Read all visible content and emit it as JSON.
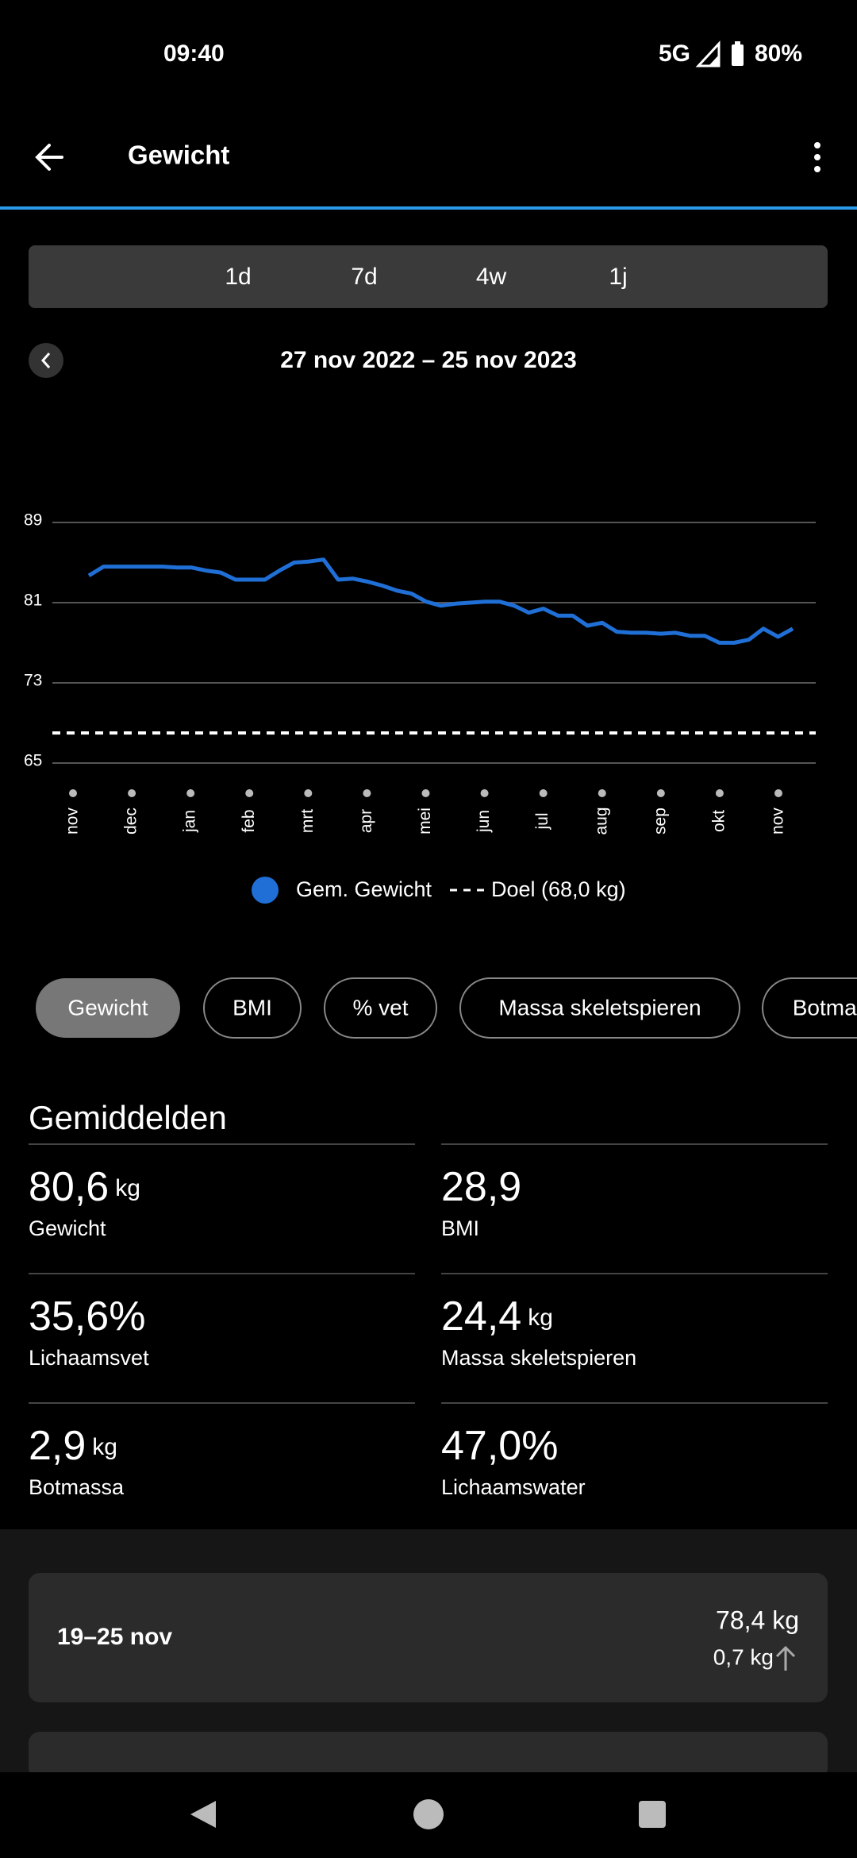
{
  "status": {
    "time": "09:40",
    "network": "5G",
    "battery": "80%"
  },
  "header": {
    "title": "Gewicht"
  },
  "tabs": [
    "1d",
    "7d",
    "4w",
    "1j"
  ],
  "range": "27 nov 2022 – 25 nov 2023",
  "chart_data": {
    "type": "line",
    "months": [
      "nov",
      "dec",
      "jan",
      "feb",
      "mrt",
      "apr",
      "mei",
      "jun",
      "jul",
      "aug",
      "sep",
      "okt",
      "nov"
    ],
    "series": [
      {
        "name": "Gem. Gewicht",
        "color": "#1f6fd6",
        "values": [
          83.7,
          84.6,
          84.6,
          84.6,
          84.6,
          84.6,
          84.5,
          84.5,
          84.2,
          84.0,
          83.3,
          83.3,
          83.3,
          84.2,
          85.0,
          85.1,
          85.3,
          83.3,
          83.4,
          83.1,
          82.7,
          82.2,
          81.9,
          81.1,
          80.7,
          80.9,
          81.0,
          81.1,
          81.1,
          80.7,
          80.0,
          80.4,
          79.7,
          79.7,
          78.7,
          79.0,
          78.1,
          78.0,
          78.0,
          77.9,
          78.0,
          77.7,
          77.7,
          77.0,
          77.0,
          77.3,
          78.4,
          77.6,
          78.4
        ]
      }
    ],
    "goal": {
      "name": "Doel (68,0 kg)",
      "value": 68,
      "color": "#ffffff"
    },
    "ylim": [
      65,
      89
    ],
    "yticks": [
      65,
      73,
      81,
      89
    ],
    "grid": true
  },
  "chips": [
    "Gewicht",
    "BMI",
    "% vet",
    "Massa skeletspieren",
    "Botmassa"
  ],
  "averages": {
    "title": "Gemiddelden",
    "items": [
      {
        "value": "80,6",
        "unit": "kg",
        "label": "Gewicht"
      },
      {
        "value": "28,9",
        "label": "BMI"
      },
      {
        "value": "35,6%",
        "label": "Lichaamsvet"
      },
      {
        "value": "24,4",
        "unit": "kg",
        "label": "Massa skeletspieren"
      },
      {
        "value": "2,9",
        "unit": "kg",
        "label": "Botmassa"
      },
      {
        "value": "47,0%",
        "label": "Lichaamswater"
      }
    ]
  },
  "weeks": [
    {
      "range": "19–25 nov",
      "weight": "78,4 kg",
      "change": "0,7 kg"
    }
  ]
}
